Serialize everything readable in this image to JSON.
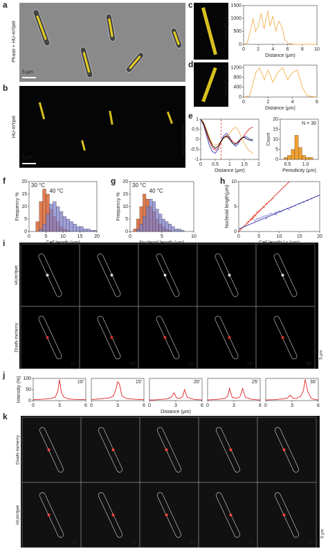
{
  "panel_labels": [
    "a",
    "b",
    "c",
    "d",
    "e",
    "f",
    "g",
    "h",
    "i",
    "j",
    "k"
  ],
  "images": {
    "a": {
      "channel": "Phase + HU-mYpet",
      "scale": "5 μm"
    },
    "b": {
      "channel": "HU-mYpet",
      "scale": "5 μm"
    },
    "i": {
      "rows": [
        "HUmYpet",
        "DnaN-mcherry"
      ],
      "times": [
        "10′",
        "15′",
        "20′",
        "25′",
        "30′"
      ],
      "scale": "5 μm"
    },
    "k": {
      "rows": [
        "DnaN-mcherry",
        "HUmYpet"
      ],
      "times": [
        "10′",
        "25′",
        "40′",
        "55′",
        "70′"
      ],
      "scale": "5 μm"
    }
  },
  "chart_data": [
    {
      "type": "line",
      "x_label": "Distance (μm)",
      "y_label": "Intensity (a.u.)",
      "xlim": [
        0,
        10
      ],
      "ylim": [
        0,
        1500
      ],
      "xticks": [
        0,
        2,
        4,
        6,
        8,
        10
      ],
      "yticks": [
        0,
        500,
        1000,
        1500
      ],
      "x": [
        0,
        0.5,
        1,
        1.3,
        1.6,
        2,
        2.4,
        2.8,
        3,
        3.3,
        3.6,
        4,
        4.4,
        4.8,
        5.2,
        5.6,
        6,
        6.5,
        7,
        8,
        10
      ],
      "series": [
        {
          "color": "#f0b050",
          "values": [
            0,
            50,
            600,
            1000,
            500,
            700,
            1200,
            600,
            900,
            1300,
            700,
            1100,
            500,
            900,
            700,
            200,
            50,
            20,
            0,
            0,
            0
          ]
        }
      ]
    },
    {
      "type": "line",
      "x_label": "Distance (μm)",
      "y_label": "Intensity (a.u.)",
      "xlim": [
        0,
        6
      ],
      "ylim": [
        0,
        1300
      ],
      "xticks": [
        0,
        2,
        4,
        6
      ],
      "yticks": [
        0,
        400,
        800,
        1200
      ],
      "x": [
        0,
        0.5,
        1,
        1.3,
        1.7,
        2,
        2.4,
        2.8,
        3.2,
        3.6,
        4,
        4.4,
        4.8,
        5.2,
        6
      ],
      "series": [
        {
          "color": "#f0b050",
          "values": [
            0,
            50,
            1000,
            1200,
            700,
            1100,
            600,
            1000,
            1200,
            700,
            1000,
            1100,
            400,
            50,
            0
          ]
        }
      ]
    },
    {
      "type": "line",
      "x_label": "Distance (μm)",
      "y_label": "Autocorrelation",
      "xlim": [
        0,
        2
      ],
      "ylim": [
        -1,
        1
      ],
      "xticks": [
        0,
        0.5,
        1,
        1.5,
        2
      ],
      "yticks": [
        -1,
        -0.5,
        0,
        0.5,
        1
      ],
      "vline": 0.7,
      "x": [
        0,
        0.1,
        0.2,
        0.3,
        0.4,
        0.5,
        0.6,
        0.7,
        0.8,
        0.9,
        1,
        1.1,
        1.2,
        1.3,
        1.4,
        1.5,
        1.6,
        1.7,
        1.8
      ],
      "series": [
        {
          "color": "#3040c0",
          "values": [
            1,
            0.7,
            0.2,
            -0.3,
            -0.6,
            -0.7,
            -0.5,
            -0.1,
            0.2,
            0.3,
            0.1,
            -0.2,
            -0.35,
            -0.2,
            0.05,
            0.15,
            0.1,
            0,
            -0.1
          ]
        },
        {
          "color": "#e03030",
          "values": [
            1,
            0.75,
            0.3,
            -0.1,
            -0.4,
            -0.55,
            -0.45,
            -0.15,
            0.1,
            0.2,
            0.05,
            -0.1,
            -0.2,
            -0.15,
            0,
            0.2,
            0.4,
            0.55,
            0.6
          ]
        },
        {
          "color": "#f0b050",
          "values": [
            1,
            0.85,
            0.5,
            0.1,
            -0.2,
            -0.3,
            -0.25,
            -0.1,
            0.05,
            0.15,
            0.3,
            0.5,
            0.6,
            0.45,
            0.1,
            -0.2,
            -0.45,
            -0.6,
            -0.7
          ]
        },
        {
          "color": "#000000",
          "values": [
            1,
            0.8,
            0.4,
            0,
            -0.3,
            -0.45,
            -0.35,
            -0.1,
            0.1,
            0.15,
            0,
            -0.2,
            -0.25,
            -0.1,
            0.05,
            0.1,
            0,
            -0.05,
            0
          ]
        }
      ]
    },
    {
      "type": "histogram",
      "x_label": "Periodicity (μm)",
      "y_label": "Count",
      "annotation": "N = 30",
      "xlim": [
        0.3,
        1.35
      ],
      "ylim": [
        0,
        20
      ],
      "xticks": [
        0.5,
        {
          "value": 1,
          "label": "1.0"
        }
      ],
      "yticks": [
        0,
        5,
        10,
        15,
        20
      ],
      "bins": [
        0.4,
        0.5,
        0.6,
        0.7,
        0.8,
        0.9,
        1.0,
        1.1,
        1.2
      ],
      "series": [
        {
          "color": "#f0a030",
          "values": [
            1,
            2,
            5,
            12,
            6,
            2,
            1,
            1
          ]
        }
      ]
    },
    {
      "type": "histogram",
      "x_label": "Cell length (μm)",
      "y_label": "Frequency %",
      "xlim": [
        0,
        20
      ],
      "ylim": [
        0,
        20
      ],
      "xticks": [
        0,
        5,
        10,
        15,
        20
      ],
      "yticks": [
        0,
        5,
        10,
        15,
        20
      ],
      "bins": [
        0,
        1,
        2,
        3,
        4,
        5,
        6,
        7,
        8,
        9,
        10,
        11,
        12,
        13,
        14,
        15,
        16,
        17,
        18,
        19,
        20
      ],
      "series": [
        {
          "name": "30 °C",
          "color": "#e07b4f",
          "values": [
            0,
            0,
            4,
            12,
            17,
            15,
            9,
            6,
            4,
            2,
            1,
            0.5,
            0,
            0,
            0,
            0,
            0,
            0,
            0,
            0
          ]
        },
        {
          "name": "40 °C",
          "color": "#8080cc",
          "values": [
            0,
            0,
            0,
            1,
            3,
            7,
            11,
            12,
            10,
            8,
            6,
            5,
            4,
            3,
            2,
            2,
            1,
            1,
            0.5,
            0.5
          ]
        }
      ]
    },
    {
      "type": "histogram",
      "x_label": "Nucleoid length (μm)",
      "y_label": "Frequency %",
      "xlim": [
        0,
        10
      ],
      "ylim": [
        0,
        20
      ],
      "xticks": [
        0,
        5,
        10
      ],
      "yticks": [
        0,
        5,
        10,
        15,
        20
      ],
      "bins": [
        0,
        0.5,
        1,
        1.5,
        2,
        2.5,
        3,
        3.5,
        4,
        4.5,
        5,
        5.5,
        6,
        6.5,
        7,
        7.5,
        8,
        8.5,
        9,
        9.5,
        10
      ],
      "series": [
        {
          "name": "30 °C",
          "color": "#e07b4f",
          "values": [
            0,
            1,
            5,
            10,
            15,
            13,
            10,
            8,
            5,
            3,
            2,
            1,
            0.5,
            0,
            0,
            0,
            0,
            0,
            0,
            0
          ]
        },
        {
          "name": "40 °C",
          "color": "#8080cc",
          "values": [
            0,
            0,
            1,
            3,
            6,
            10,
            13,
            12,
            9,
            7,
            5,
            4,
            3,
            2,
            1,
            1,
            0.5,
            0,
            0,
            0
          ]
        }
      ]
    },
    {
      "type": "scatter",
      "x_label": "Cell length Lc (μm)",
      "y_label": "Nucleoid length(μm)",
      "xlim": [
        0,
        20
      ],
      "ylim": [
        0,
        10
      ],
      "xticks": [
        0,
        5,
        10,
        15,
        20
      ],
      "yticks": [
        0,
        5,
        10
      ],
      "series": [
        {
          "color": "#e87060",
          "x": [
            2,
            2.3,
            2.5,
            2.8,
            3,
            3.2,
            3.4,
            3.6,
            3.8,
            4,
            4.2,
            4.5,
            4.8,
            5,
            5.3,
            5.6,
            6,
            6.3,
            6.7,
            7,
            7.5,
            8,
            8.5,
            3.5,
            4.4
          ],
          "values": [
            1.6,
            2,
            1.9,
            2.3,
            2.6,
            2.4,
            3,
            2.8,
            3.2,
            3.4,
            3.1,
            3.7,
            3.9,
            4.2,
            4.3,
            4.6,
            5,
            4.8,
            5.5,
            5.6,
            6,
            6.3,
            6.6,
            2.5,
            3.9
          ]
        },
        {
          "color": "#5050c0",
          "x": [
            4,
            4.5,
            5,
            5.5,
            6,
            6.5,
            7,
            7.5,
            8,
            8.5,
            9,
            9.5,
            10,
            10.5,
            11,
            12,
            13,
            14,
            15,
            16,
            17,
            18,
            6.8,
            9.2,
            12.5
          ],
          "values": [
            2.2,
            2.5,
            2.6,
            2.8,
            3,
            3.1,
            3.2,
            3.4,
            3.6,
            3.5,
            3.8,
            3.9,
            4.1,
            4,
            4.3,
            4.6,
            4.9,
            5.2,
            5.6,
            5.9,
            6.2,
            6.6,
            2.6,
            3.4,
            4.4
          ]
        }
      ],
      "fits": [
        {
          "color": "#e03020",
          "x": [
            0,
            12.5
          ],
          "values": [
            0,
            10
          ]
        },
        {
          "color": "#3030a0",
          "x": [
            0,
            20
          ],
          "values": [
            0.5,
            7.3
          ]
        }
      ]
    },
    {
      "type": "line",
      "title": "10′",
      "y_label": "Intensity (%)",
      "xlim": [
        0,
        6
      ],
      "ylim": [
        0,
        100
      ],
      "xticks": [
        0,
        3,
        6
      ],
      "yticks": [
        0,
        50,
        100
      ],
      "x": [
        0,
        0.5,
        1,
        1.5,
        2,
        2.5,
        2.8,
        3,
        3.2,
        3.5,
        4,
        4.5,
        5,
        5.5,
        6
      ],
      "series": [
        {
          "color": "#e02020",
          "values": [
            5,
            5,
            6,
            8,
            10,
            15,
            40,
            95,
            40,
            15,
            8,
            6,
            5,
            5,
            5
          ]
        }
      ]
    },
    {
      "type": "line",
      "title": "15′",
      "xlim": [
        0,
        6
      ],
      "ylim": [
        0,
        100
      ],
      "xticks": [
        0,
        3,
        6
      ],
      "x": [
        0,
        0.5,
        1,
        1.5,
        2,
        2.5,
        2.8,
        3,
        3.2,
        3.5,
        4,
        4.5,
        5,
        5.5,
        6
      ],
      "series": [
        {
          "color": "#e02020",
          "values": [
            5,
            6,
            8,
            10,
            12,
            20,
            50,
            85,
            75,
            20,
            10,
            8,
            6,
            5,
            5
          ]
        }
      ]
    },
    {
      "type": "line",
      "title": "20′",
      "x_label": "Distance (μm)",
      "xlim": [
        0,
        6
      ],
      "ylim": [
        0,
        100
      ],
      "xticks": [
        0,
        3,
        6
      ],
      "x": [
        0,
        0.5,
        1,
        1.5,
        2,
        2.5,
        2.8,
        3.1,
        3.5,
        3.8,
        4,
        4.3,
        5,
        5.5,
        6
      ],
      "series": [
        {
          "color": "#e02020",
          "values": [
            3,
            3,
            4,
            6,
            8,
            15,
            35,
            12,
            10,
            20,
            50,
            15,
            6,
            4,
            3
          ]
        }
      ]
    },
    {
      "type": "line",
      "title": "25′",
      "xlim": [
        0,
        6
      ],
      "ylim": [
        0,
        100
      ],
      "xticks": [
        0,
        3,
        6
      ],
      "x": [
        0,
        0.5,
        1,
        1.5,
        2,
        2.3,
        2.5,
        2.8,
        3.3,
        3.7,
        4,
        4.3,
        5,
        5.5,
        6
      ],
      "series": [
        {
          "color": "#e02020",
          "values": [
            3,
            4,
            5,
            8,
            10,
            20,
            55,
            15,
            10,
            18,
            55,
            15,
            6,
            4,
            3
          ]
        }
      ]
    },
    {
      "type": "line",
      "title": "30′",
      "xlim": [
        0,
        6
      ],
      "ylim": [
        0,
        100
      ],
      "xticks": [
        0,
        3,
        6
      ],
      "x": [
        0,
        1,
        1.5,
        2,
        2.5,
        2.8,
        3.1,
        3.5,
        4,
        4.3,
        4.5,
        4.8,
        5.2,
        5.6,
        6
      ],
      "series": [
        {
          "color": "#e02020",
          "values": [
            3,
            4,
            6,
            8,
            12,
            25,
            10,
            10,
            20,
            45,
            95,
            40,
            10,
            5,
            3
          ]
        }
      ]
    }
  ]
}
